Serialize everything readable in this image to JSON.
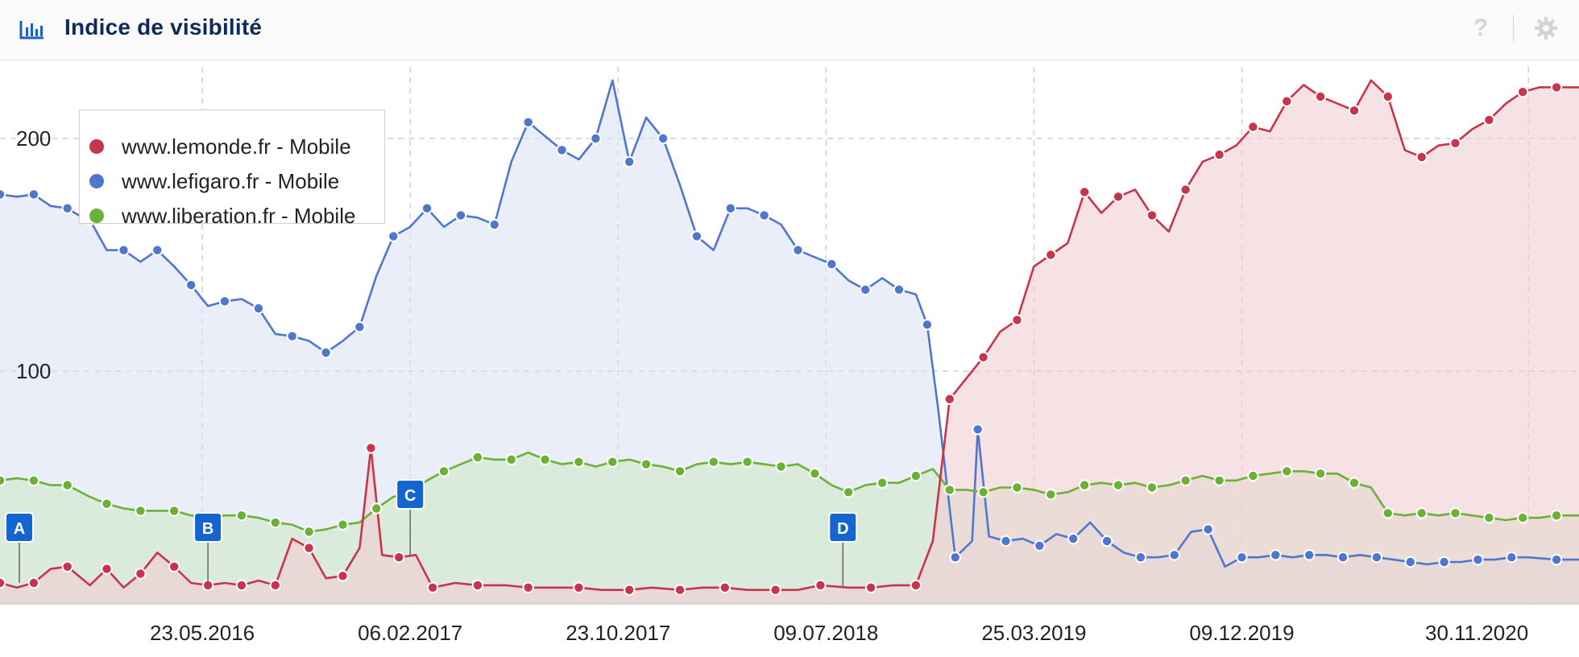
{
  "header": {
    "title": "Indice de visibilité",
    "chart_icon": "bar-chart-icon",
    "help_icon": "help-icon",
    "help_text": "?",
    "settings_icon": "gear-icon"
  },
  "colors": {
    "lemonde": "#c8354a",
    "lefigaro": "#4f77cc",
    "liberation": "#6bb136",
    "lemonde_fill": "#f0cfd3",
    "lefigaro_fill": "#dde4f6",
    "liberation_fill": "#d2e9c8",
    "marker": "#1565d0"
  },
  "chart_data": {
    "type": "area",
    "title": "Indice de visibilité",
    "xlabel": "",
    "ylabel": "",
    "ylim": [
      0,
      225
    ],
    "yticks": [
      100,
      200
    ],
    "grid": true,
    "legend_position": "top-left",
    "x_range": [
      "2015-09-14",
      "2021-02-01"
    ],
    "xtick_labels": [
      "23.05.2016",
      "06.02.2017",
      "23.10.2017",
      "09.07.2018",
      "25.03.2019",
      "09.12.2019",
      "30.11.2020"
    ],
    "xtick_dates": [
      "2016-05-23",
      "2017-02-06",
      "2017-10-23",
      "2018-07-09",
      "2019-03-25",
      "2019-12-09",
      "2020-11-30"
    ],
    "series": [
      {
        "name": "www.lemonde.fr - Mobile",
        "points": [
          [
            "2015-09-14",
            9
          ],
          [
            "2015-10-05",
            7
          ],
          [
            "2015-10-26",
            9
          ],
          [
            "2015-11-16",
            15
          ],
          [
            "2015-12-07",
            16
          ],
          [
            "2016-01-04",
            8
          ],
          [
            "2016-01-25",
            15
          ],
          [
            "2016-02-15",
            7
          ],
          [
            "2016-03-07",
            13
          ],
          [
            "2016-03-28",
            22
          ],
          [
            "2016-04-18",
            16
          ],
          [
            "2016-05-09",
            9
          ],
          [
            "2016-05-30",
            8
          ],
          [
            "2016-06-20",
            9
          ],
          [
            "2016-07-11",
            8
          ],
          [
            "2016-08-01",
            10
          ],
          [
            "2016-08-22",
            8
          ],
          [
            "2016-09-12",
            28
          ],
          [
            "2016-10-03",
            24
          ],
          [
            "2016-10-24",
            11
          ],
          [
            "2016-11-14",
            12
          ],
          [
            "2016-12-05",
            24
          ],
          [
            "2016-12-19",
            67
          ],
          [
            "2017-01-02",
            21
          ],
          [
            "2017-01-23",
            20
          ],
          [
            "2017-02-13",
            21
          ],
          [
            "2017-03-06",
            7
          ],
          [
            "2017-04-03",
            9
          ],
          [
            "2017-05-01",
            8
          ],
          [
            "2017-06-05",
            8
          ],
          [
            "2017-07-03",
            7
          ],
          [
            "2017-08-07",
            7
          ],
          [
            "2017-09-04",
            7
          ],
          [
            "2017-10-02",
            6
          ],
          [
            "2017-11-06",
            6
          ],
          [
            "2017-12-04",
            7
          ],
          [
            "2018-01-08",
            6
          ],
          [
            "2018-02-05",
            7
          ],
          [
            "2018-03-05",
            7
          ],
          [
            "2018-04-02",
            6
          ],
          [
            "2018-05-07",
            6
          ],
          [
            "2018-06-04",
            6
          ],
          [
            "2018-07-02",
            8
          ],
          [
            "2018-08-06",
            7
          ],
          [
            "2018-09-03",
            7
          ],
          [
            "2018-10-01",
            8
          ],
          [
            "2018-10-29",
            8
          ],
          [
            "2018-11-19",
            27
          ],
          [
            "2018-12-10",
            88
          ],
          [
            "2018-12-31",
            97
          ],
          [
            "2019-01-21",
            106
          ],
          [
            "2019-02-11",
            117
          ],
          [
            "2019-03-04",
            122
          ],
          [
            "2019-03-25",
            145
          ],
          [
            "2019-04-15",
            150
          ],
          [
            "2019-05-06",
            155
          ],
          [
            "2019-05-27",
            177
          ],
          [
            "2019-06-17",
            168
          ],
          [
            "2019-07-08",
            175
          ],
          [
            "2019-07-29",
            178
          ],
          [
            "2019-08-19",
            167
          ],
          [
            "2019-09-09",
            160
          ],
          [
            "2019-09-30",
            178
          ],
          [
            "2019-10-21",
            190
          ],
          [
            "2019-11-11",
            193
          ],
          [
            "2019-12-02",
            197
          ],
          [
            "2019-12-23",
            205
          ],
          [
            "2020-01-13",
            203
          ],
          [
            "2020-02-03",
            216
          ],
          [
            "2020-02-24",
            223
          ],
          [
            "2020-03-16",
            218
          ],
          [
            "2020-04-06",
            215
          ],
          [
            "2020-04-27",
            212
          ],
          [
            "2020-05-18",
            225
          ],
          [
            "2020-06-08",
            218
          ],
          [
            "2020-06-29",
            195
          ],
          [
            "2020-07-20",
            192
          ],
          [
            "2020-08-10",
            197
          ],
          [
            "2020-08-31",
            198
          ],
          [
            "2020-09-21",
            204
          ],
          [
            "2020-10-12",
            208
          ],
          [
            "2020-11-02",
            215
          ],
          [
            "2020-11-23",
            220
          ],
          [
            "2020-12-14",
            222
          ],
          [
            "2021-01-04",
            222
          ],
          [
            "2021-02-01",
            222
          ]
        ]
      },
      {
        "name": "www.lefigaro.fr - Mobile",
        "points": [
          [
            "2015-09-14",
            176
          ],
          [
            "2015-10-05",
            175
          ],
          [
            "2015-10-26",
            176
          ],
          [
            "2015-11-16",
            171
          ],
          [
            "2015-12-07",
            170
          ],
          [
            "2015-12-21",
            167
          ],
          [
            "2016-01-04",
            165
          ],
          [
            "2016-01-25",
            152
          ],
          [
            "2016-02-15",
            152
          ],
          [
            "2016-03-07",
            147
          ],
          [
            "2016-03-28",
            152
          ],
          [
            "2016-04-18",
            145
          ],
          [
            "2016-05-09",
            137
          ],
          [
            "2016-05-30",
            128
          ],
          [
            "2016-06-20",
            130
          ],
          [
            "2016-07-11",
            131
          ],
          [
            "2016-08-01",
            127
          ],
          [
            "2016-08-22",
            116
          ],
          [
            "2016-09-12",
            115
          ],
          [
            "2016-10-03",
            113
          ],
          [
            "2016-10-24",
            108
          ],
          [
            "2016-11-14",
            113
          ],
          [
            "2016-12-05",
            119
          ],
          [
            "2016-12-26",
            141
          ],
          [
            "2017-01-16",
            158
          ],
          [
            "2017-02-06",
            162
          ],
          [
            "2017-02-27",
            170
          ],
          [
            "2017-03-20",
            162
          ],
          [
            "2017-04-10",
            167
          ],
          [
            "2017-05-01",
            166
          ],
          [
            "2017-05-22",
            163
          ],
          [
            "2017-06-12",
            190
          ],
          [
            "2017-07-03",
            207
          ],
          [
            "2017-07-24",
            201
          ],
          [
            "2017-08-14",
            195
          ],
          [
            "2017-09-04",
            191
          ],
          [
            "2017-09-25",
            200
          ],
          [
            "2017-10-16",
            225
          ],
          [
            "2017-11-06",
            190
          ],
          [
            "2017-11-27",
            209
          ],
          [
            "2017-12-18",
            200
          ],
          [
            "2018-01-08",
            180
          ],
          [
            "2018-01-29",
            158
          ],
          [
            "2018-02-19",
            152
          ],
          [
            "2018-03-12",
            170
          ],
          [
            "2018-04-02",
            170
          ],
          [
            "2018-04-23",
            167
          ],
          [
            "2018-05-14",
            163
          ],
          [
            "2018-06-04",
            152
          ],
          [
            "2018-06-25",
            149
          ],
          [
            "2018-07-16",
            146
          ],
          [
            "2018-08-06",
            139
          ],
          [
            "2018-08-27",
            135
          ],
          [
            "2018-09-17",
            140
          ],
          [
            "2018-10-08",
            135
          ],
          [
            "2018-10-29",
            133
          ],
          [
            "2018-11-12",
            120
          ],
          [
            "2018-11-26",
            83
          ],
          [
            "2018-12-17",
            20
          ],
          [
            "2019-01-07",
            27
          ],
          [
            "2019-01-14",
            75
          ],
          [
            "2019-01-28",
            29
          ],
          [
            "2019-02-18",
            27
          ],
          [
            "2019-03-11",
            28
          ],
          [
            "2019-04-01",
            25
          ],
          [
            "2019-04-22",
            30
          ],
          [
            "2019-05-13",
            28
          ],
          [
            "2019-06-03",
            35
          ],
          [
            "2019-06-24",
            27
          ],
          [
            "2019-07-15",
            22
          ],
          [
            "2019-08-05",
            20
          ],
          [
            "2019-08-26",
            20
          ],
          [
            "2019-09-16",
            21
          ],
          [
            "2019-10-07",
            31
          ],
          [
            "2019-10-28",
            32
          ],
          [
            "2019-11-18",
            16
          ],
          [
            "2019-12-09",
            20
          ],
          [
            "2019-12-30",
            20
          ],
          [
            "2020-01-20",
            21
          ],
          [
            "2020-02-10",
            20
          ],
          [
            "2020-03-02",
            21
          ],
          [
            "2020-03-23",
            21
          ],
          [
            "2020-04-13",
            20
          ],
          [
            "2020-05-04",
            21
          ],
          [
            "2020-05-25",
            20
          ],
          [
            "2020-06-15",
            19
          ],
          [
            "2020-07-06",
            18
          ],
          [
            "2020-07-27",
            17
          ],
          [
            "2020-08-17",
            18
          ],
          [
            "2020-09-07",
            18
          ],
          [
            "2020-09-28",
            19
          ],
          [
            "2020-10-19",
            19
          ],
          [
            "2020-11-09",
            20
          ],
          [
            "2020-11-30",
            20
          ],
          [
            "2021-01-04",
            19
          ],
          [
            "2021-02-01",
            19
          ]
        ]
      },
      {
        "name": "www.liberation.fr - Mobile",
        "points": [
          [
            "2015-09-14",
            53
          ],
          [
            "2015-10-05",
            54
          ],
          [
            "2015-10-26",
            53
          ],
          [
            "2015-11-16",
            51
          ],
          [
            "2015-12-07",
            51
          ],
          [
            "2016-01-04",
            46
          ],
          [
            "2016-01-25",
            43
          ],
          [
            "2016-02-15",
            41
          ],
          [
            "2016-03-07",
            40
          ],
          [
            "2016-03-28",
            40
          ],
          [
            "2016-04-18",
            40
          ],
          [
            "2016-05-09",
            38
          ],
          [
            "2016-05-30",
            37
          ],
          [
            "2016-06-20",
            38
          ],
          [
            "2016-07-11",
            38
          ],
          [
            "2016-08-01",
            37
          ],
          [
            "2016-08-22",
            35
          ],
          [
            "2016-09-12",
            34
          ],
          [
            "2016-10-03",
            31
          ],
          [
            "2016-10-24",
            32
          ],
          [
            "2016-11-14",
            34
          ],
          [
            "2016-12-05",
            35
          ],
          [
            "2016-12-26",
            41
          ],
          [
            "2017-01-16",
            46
          ],
          [
            "2017-02-06",
            48
          ],
          [
            "2017-02-27",
            53
          ],
          [
            "2017-03-20",
            57
          ],
          [
            "2017-04-10",
            60
          ],
          [
            "2017-05-01",
            63
          ],
          [
            "2017-05-22",
            62
          ],
          [
            "2017-06-12",
            62
          ],
          [
            "2017-07-03",
            65
          ],
          [
            "2017-07-24",
            62
          ],
          [
            "2017-08-14",
            60
          ],
          [
            "2017-09-04",
            61
          ],
          [
            "2017-09-25",
            59
          ],
          [
            "2017-10-16",
            61
          ],
          [
            "2017-11-06",
            62
          ],
          [
            "2017-11-27",
            60
          ],
          [
            "2017-12-18",
            59
          ],
          [
            "2018-01-08",
            57
          ],
          [
            "2018-01-29",
            60
          ],
          [
            "2018-02-19",
            61
          ],
          [
            "2018-03-12",
            60
          ],
          [
            "2018-04-02",
            61
          ],
          [
            "2018-04-23",
            60
          ],
          [
            "2018-05-14",
            59
          ],
          [
            "2018-06-04",
            60
          ],
          [
            "2018-06-25",
            56
          ],
          [
            "2018-07-16",
            51
          ],
          [
            "2018-08-06",
            48
          ],
          [
            "2018-08-27",
            51
          ],
          [
            "2018-09-17",
            52
          ],
          [
            "2018-10-08",
            52
          ],
          [
            "2018-10-29",
            55
          ],
          [
            "2018-11-19",
            58
          ],
          [
            "2018-12-10",
            49
          ],
          [
            "2018-12-31",
            49
          ],
          [
            "2019-01-21",
            48
          ],
          [
            "2019-02-11",
            50
          ],
          [
            "2019-03-04",
            50
          ],
          [
            "2019-03-25",
            49
          ],
          [
            "2019-04-15",
            47
          ],
          [
            "2019-05-06",
            48
          ],
          [
            "2019-05-27",
            51
          ],
          [
            "2019-06-17",
            52
          ],
          [
            "2019-07-08",
            51
          ],
          [
            "2019-07-29",
            52
          ],
          [
            "2019-08-19",
            50
          ],
          [
            "2019-09-09",
            51
          ],
          [
            "2019-09-30",
            53
          ],
          [
            "2019-10-21",
            55
          ],
          [
            "2019-11-11",
            53
          ],
          [
            "2019-12-02",
            53
          ],
          [
            "2019-12-23",
            55
          ],
          [
            "2020-01-13",
            56
          ],
          [
            "2020-02-03",
            57
          ],
          [
            "2020-02-24",
            57
          ],
          [
            "2020-03-16",
            56
          ],
          [
            "2020-04-06",
            56
          ],
          [
            "2020-04-27",
            52
          ],
          [
            "2020-05-18",
            50
          ],
          [
            "2020-06-08",
            39
          ],
          [
            "2020-06-29",
            38
          ],
          [
            "2020-07-20",
            39
          ],
          [
            "2020-08-10",
            38
          ],
          [
            "2020-08-31",
            39
          ],
          [
            "2020-09-21",
            38
          ],
          [
            "2020-10-12",
            37
          ],
          [
            "2020-11-02",
            36
          ],
          [
            "2020-11-23",
            37
          ],
          [
            "2020-12-14",
            37
          ],
          [
            "2021-01-04",
            38
          ],
          [
            "2021-02-01",
            38
          ]
        ]
      }
    ],
    "annotations": [
      {
        "label": "A",
        "date": "2015-09-14",
        "y": 9
      },
      {
        "label": "B",
        "date": "2016-05-30",
        "y": 9
      },
      {
        "label": "C",
        "date": "2017-02-06",
        "y": 21
      },
      {
        "label": "D",
        "date": "2018-07-30",
        "y": 7
      }
    ]
  }
}
